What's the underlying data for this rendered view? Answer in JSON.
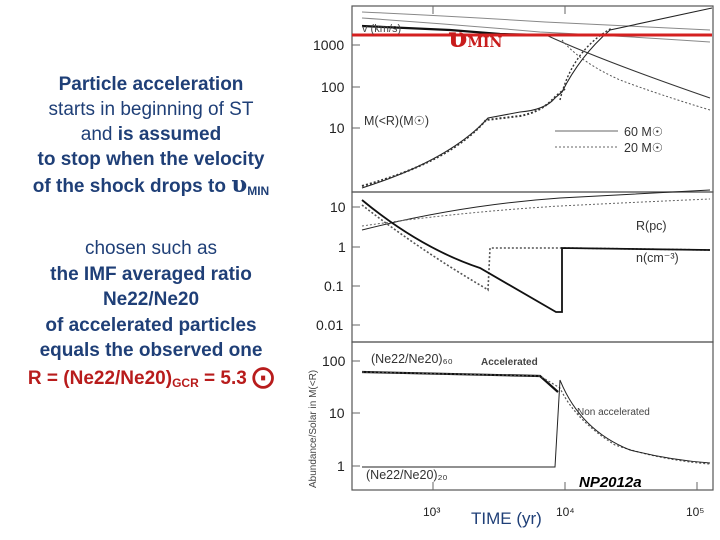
{
  "text": {
    "p1_l1": "Particle acceleration",
    "p1_l2": "starts in beginning of ST",
    "p1_l3a": "and ",
    "p1_l3b": "is assumed",
    "p1_l4": "to stop when the velocity",
    "p1_l5": "of the shock drops to ",
    "upsilon": "υ",
    "min_sub": "MIN",
    "p2_l1": "chosen such as",
    "p2_l2": "the IMF averaged ratio",
    "p2_l3": "Ne22/Ne20",
    "p2_l4": "of accelerated particles",
    "p2_l5": "equals the observed one",
    "p2_l6a": "R = (Ne22/Ne20)",
    "p2_l6sub": "GCR",
    "p2_l6b": " = 5.3 ",
    "sun": "⨀"
  },
  "figure": {
    "vmin_sym": "υ",
    "vmin_sub": "MIN",
    "credit": "NP2012a",
    "time_label": "TIME (yr)",
    "xticks": [
      "10³",
      "10⁴",
      "10⁵"
    ],
    "panel1": {
      "ticks": [
        "1000",
        "100",
        "10"
      ],
      "v_label": "v (km/s)",
      "m_label": "M(<R)(M☉)"
    },
    "legend": {
      "l60": "60  M☉",
      "l20": "20  M☉"
    },
    "panel2": {
      "ticks": [
        "10",
        "1",
        "0.1",
        "0.01"
      ],
      "r_label": "R(pc)",
      "n_label": "n(cm⁻³)"
    },
    "panel3": {
      "ticks": [
        "100",
        "10",
        "1"
      ],
      "ylabel": "Abundance/Solar in M(<R)",
      "top_label": "(Ne22/Ne20)₆₀",
      "bottom_label": "(Ne22/Ne20)₂₀",
      "acc": "Accelerated",
      "nonacc": "Non accelerated"
    },
    "colors": {
      "vmin_line": "#d42020",
      "text_blue": "#1f3f77",
      "credit": "#000000"
    }
  }
}
